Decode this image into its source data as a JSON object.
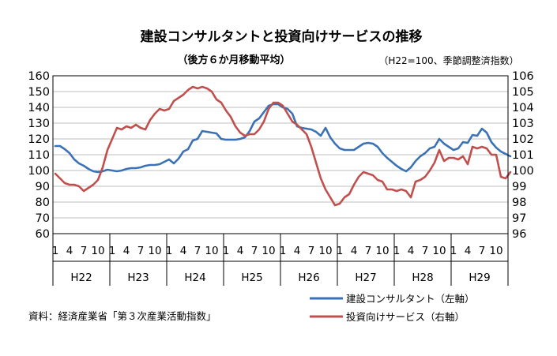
{
  "chart_data": {
    "type": "line",
    "title": "建設コンサルタントと投資向けサービスの推移",
    "subtitle": "（後方６か月移動平均）",
    "note": "（H22=100、季節調整済指数）",
    "source": "資料：経済産業省「第３次産業活動指数」",
    "y_left": {
      "min": 60,
      "max": 160,
      "ticks": [
        "160",
        "150",
        "140",
        "130",
        "120",
        "110",
        "100",
        "90",
        "80",
        "70",
        "60"
      ]
    },
    "y_right": {
      "min": 96,
      "max": 106,
      "ticks": [
        "106",
        "105",
        "104",
        "103",
        "102",
        "101",
        "100",
        "99",
        "98",
        "97",
        "96"
      ]
    },
    "years": [
      "H22",
      "H23",
      "H24",
      "H25",
      "H26",
      "H27",
      "H28",
      "H29"
    ],
    "month_ticks": [
      "1",
      "4",
      "7",
      "10"
    ],
    "grid": "horizontal",
    "legend_position": "bottom-right",
    "series": [
      {
        "name": "建設コンサルタント（左軸）",
        "axis": "left",
        "color": "#3b72b5",
        "values": [
          115.5,
          115.5,
          113.5,
          111,
          107,
          104.5,
          103,
          101,
          99.5,
          99,
          99.5,
          100.5,
          100,
          99.5,
          100,
          101,
          101.5,
          101.5,
          102,
          103,
          103.5,
          103.5,
          104,
          105.5,
          107,
          104.5,
          107.5,
          112,
          113.5,
          119,
          120,
          125,
          124.5,
          124,
          123.5,
          120,
          119.5,
          119.5,
          119.5,
          120,
          121,
          125,
          131,
          133,
          137,
          141,
          142,
          142,
          140,
          139,
          136,
          128,
          127,
          126.5,
          126,
          124.5,
          122,
          127,
          121,
          117,
          114,
          113,
          113,
          113,
          115,
          117,
          117.5,
          117,
          115,
          111,
          108,
          105.5,
          103,
          101,
          99.5,
          102,
          106,
          109,
          111,
          114,
          115,
          120,
          117,
          115,
          113,
          114,
          118,
          117.5,
          122.5,
          122,
          126.5,
          124,
          118,
          114.5,
          112,
          110.5,
          109
        ]
      },
      {
        "name": "投資向けサービス（右軸）",
        "axis": "right",
        "color": "#c0504d",
        "values": [
          99.8,
          99.5,
          99.2,
          99.1,
          99.1,
          99.0,
          98.7,
          98.9,
          99.1,
          99.4,
          100.2,
          101.3,
          102.0,
          102.7,
          102.6,
          102.8,
          102.7,
          102.9,
          102.7,
          102.6,
          103.2,
          103.6,
          103.9,
          103.8,
          103.9,
          104.4,
          104.6,
          104.8,
          105.1,
          105.3,
          105.2,
          105.3,
          105.2,
          105.0,
          104.5,
          104.3,
          103.8,
          103.4,
          102.8,
          102.4,
          102.2,
          102.3,
          102.3,
          102.6,
          103.1,
          103.9,
          104.3,
          104.3,
          104.1,
          103.6,
          103.1,
          102.9,
          102.6,
          102.3,
          101.5,
          100.5,
          99.5,
          98.8,
          98.3,
          97.8,
          97.9,
          98.3,
          98.5,
          99.1,
          99.6,
          99.9,
          99.8,
          99.7,
          99.4,
          99.3,
          98.8,
          98.8,
          98.7,
          98.8,
          98.7,
          98.3,
          99.3,
          99.4,
          99.6,
          100.0,
          100.5,
          101.3,
          100.6,
          100.8,
          100.8,
          100.7,
          100.9,
          100.4,
          101.5,
          101.4,
          101.5,
          101.4,
          101.0,
          101.0,
          99.6,
          99.5,
          99.9
        ]
      }
    ]
  }
}
